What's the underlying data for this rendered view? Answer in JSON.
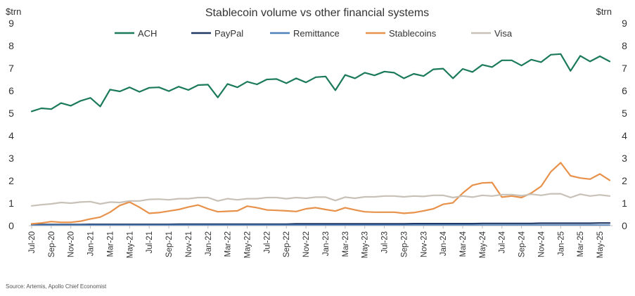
{
  "chart_data": {
    "type": "line",
    "title": "Stablecoin volume vs other financial systems",
    "ylabel_left": "$trn",
    "ylabel_right": "$trn",
    "ylim": [
      0,
      9
    ],
    "yticks": [
      "0",
      "1",
      "2",
      "3",
      "4",
      "5",
      "6",
      "7",
      "8",
      "9"
    ],
    "x": [
      "Jul-20",
      "Aug-20",
      "Sep-20",
      "Oct-20",
      "Nov-20",
      "Dec-20",
      "Jan-21",
      "Feb-21",
      "Mar-21",
      "Apr-21",
      "May-21",
      "Jun-21",
      "Jul-21",
      "Aug-21",
      "Sep-21",
      "Oct-21",
      "Nov-21",
      "Dec-21",
      "Jan-22",
      "Feb-22",
      "Mar-22",
      "Apr-22",
      "May-22",
      "Jun-22",
      "Jul-22",
      "Aug-22",
      "Sep-22",
      "Oct-22",
      "Nov-22",
      "Dec-22",
      "Jan-23",
      "Feb-23",
      "Mar-23",
      "Apr-23",
      "May-23",
      "Jun-23",
      "Jul-23",
      "Aug-23",
      "Sep-23",
      "Oct-23",
      "Nov-23",
      "Dec-23",
      "Jan-24",
      "Feb-24",
      "Mar-24",
      "Apr-24",
      "May-24",
      "Jun-24",
      "Jul-24",
      "Aug-24",
      "Sep-24",
      "Oct-24",
      "Nov-24",
      "Dec-24",
      "Jan-25",
      "Feb-25",
      "Mar-25",
      "Apr-25",
      "May-25",
      "Jun-25"
    ],
    "xtick_labels": [
      "Jul-20",
      "Sep-20",
      "Nov-20",
      "Jan-21",
      "Mar-21",
      "May-21",
      "Jul-21",
      "Sep-21",
      "Nov-21",
      "Jan-22",
      "Mar-22",
      "May-22",
      "Jul-22",
      "Sep-22",
      "Nov-22",
      "Jan-23",
      "Mar-23",
      "May-23",
      "Jul-23",
      "Sep-23",
      "Nov-23",
      "Jan-24",
      "Mar-24",
      "May-24",
      "Jul-24",
      "Sep-24",
      "Nov-24",
      "Jan-25",
      "Mar-25",
      "May-25"
    ],
    "series": [
      {
        "name": "ACH",
        "color": "#1b7a5a",
        "values": [
          5.08,
          5.22,
          5.18,
          5.45,
          5.33,
          5.55,
          5.68,
          5.3,
          6.05,
          5.97,
          6.15,
          5.95,
          6.13,
          6.15,
          5.98,
          6.18,
          6.03,
          6.25,
          6.27,
          5.7,
          6.3,
          6.15,
          6.4,
          6.28,
          6.5,
          6.52,
          6.33,
          6.55,
          6.37,
          6.6,
          6.63,
          6.02,
          6.7,
          6.55,
          6.8,
          6.68,
          6.85,
          6.8,
          6.55,
          6.75,
          6.65,
          6.95,
          6.98,
          6.55,
          6.97,
          6.83,
          7.15,
          7.05,
          7.35,
          7.35,
          7.12,
          7.38,
          7.27,
          7.6,
          7.63,
          6.88,
          7.55,
          7.3,
          7.53,
          7.3
        ]
      },
      {
        "name": "PayPal",
        "color": "#1f3864",
        "values": [
          0.05,
          0.05,
          0.05,
          0.05,
          0.05,
          0.05,
          0.06,
          0.06,
          0.06,
          0.06,
          0.06,
          0.06,
          0.06,
          0.06,
          0.06,
          0.07,
          0.07,
          0.07,
          0.07,
          0.07,
          0.07,
          0.07,
          0.07,
          0.07,
          0.07,
          0.07,
          0.07,
          0.08,
          0.08,
          0.08,
          0.08,
          0.08,
          0.08,
          0.08,
          0.08,
          0.08,
          0.08,
          0.08,
          0.08,
          0.09,
          0.09,
          0.09,
          0.09,
          0.09,
          0.09,
          0.09,
          0.1,
          0.1,
          0.1,
          0.1,
          0.1,
          0.1,
          0.11,
          0.11,
          0.11,
          0.11,
          0.11,
          0.11,
          0.12,
          0.12
        ]
      },
      {
        "name": "Remittance",
        "color": "#4f81bd",
        "values": [
          0.03,
          0.03,
          0.03,
          0.03,
          0.03,
          0.03,
          0.03,
          0.03,
          0.03,
          0.03,
          0.03,
          0.03,
          0.03,
          0.03,
          0.03,
          0.03,
          0.03,
          0.03,
          0.03,
          0.03,
          0.03,
          0.03,
          0.03,
          0.03,
          0.03,
          0.03,
          0.03,
          0.03,
          0.03,
          0.03,
          0.03,
          0.03,
          0.03,
          0.03,
          0.03,
          0.03,
          0.03,
          0.03,
          0.03,
          0.03,
          0.03,
          0.03,
          0.03,
          0.03,
          0.03,
          0.03,
          0.03,
          0.03,
          0.03,
          0.03,
          0.03,
          0.03,
          0.03,
          0.03,
          0.03,
          0.03,
          0.03,
          0.03,
          0.03,
          0.03
        ]
      },
      {
        "name": "Stablecoins",
        "color": "#e8914a",
        "values": [
          0.08,
          0.12,
          0.18,
          0.15,
          0.15,
          0.2,
          0.3,
          0.38,
          0.6,
          0.9,
          1.05,
          0.82,
          0.55,
          0.58,
          0.65,
          0.72,
          0.83,
          0.92,
          0.75,
          0.62,
          0.64,
          0.66,
          0.87,
          0.8,
          0.7,
          0.68,
          0.66,
          0.63,
          0.75,
          0.8,
          0.72,
          0.65,
          0.8,
          0.7,
          0.62,
          0.6,
          0.6,
          0.6,
          0.55,
          0.58,
          0.66,
          0.75,
          0.95,
          1.02,
          1.45,
          1.8,
          1.9,
          1.92,
          1.27,
          1.32,
          1.25,
          1.45,
          1.75,
          2.4,
          2.8,
          2.22,
          2.12,
          2.07,
          2.3,
          2.02
        ]
      },
      {
        "name": "Visa",
        "color": "#c8c1b7",
        "values": [
          0.88,
          0.93,
          0.97,
          1.03,
          1.0,
          1.05,
          1.07,
          0.97,
          1.05,
          1.03,
          1.1,
          1.1,
          1.17,
          1.18,
          1.15,
          1.2,
          1.2,
          1.25,
          1.25,
          1.1,
          1.2,
          1.15,
          1.2,
          1.2,
          1.25,
          1.25,
          1.2,
          1.25,
          1.22,
          1.27,
          1.27,
          1.12,
          1.27,
          1.22,
          1.28,
          1.28,
          1.32,
          1.32,
          1.28,
          1.32,
          1.3,
          1.35,
          1.35,
          1.25,
          1.32,
          1.27,
          1.35,
          1.32,
          1.38,
          1.38,
          1.33,
          1.4,
          1.35,
          1.42,
          1.42,
          1.25,
          1.4,
          1.32,
          1.37,
          1.32
        ]
      }
    ],
    "legend_position": "top",
    "grid": false,
    "source": "Source: Artemis, Apollo Chief Economist"
  }
}
